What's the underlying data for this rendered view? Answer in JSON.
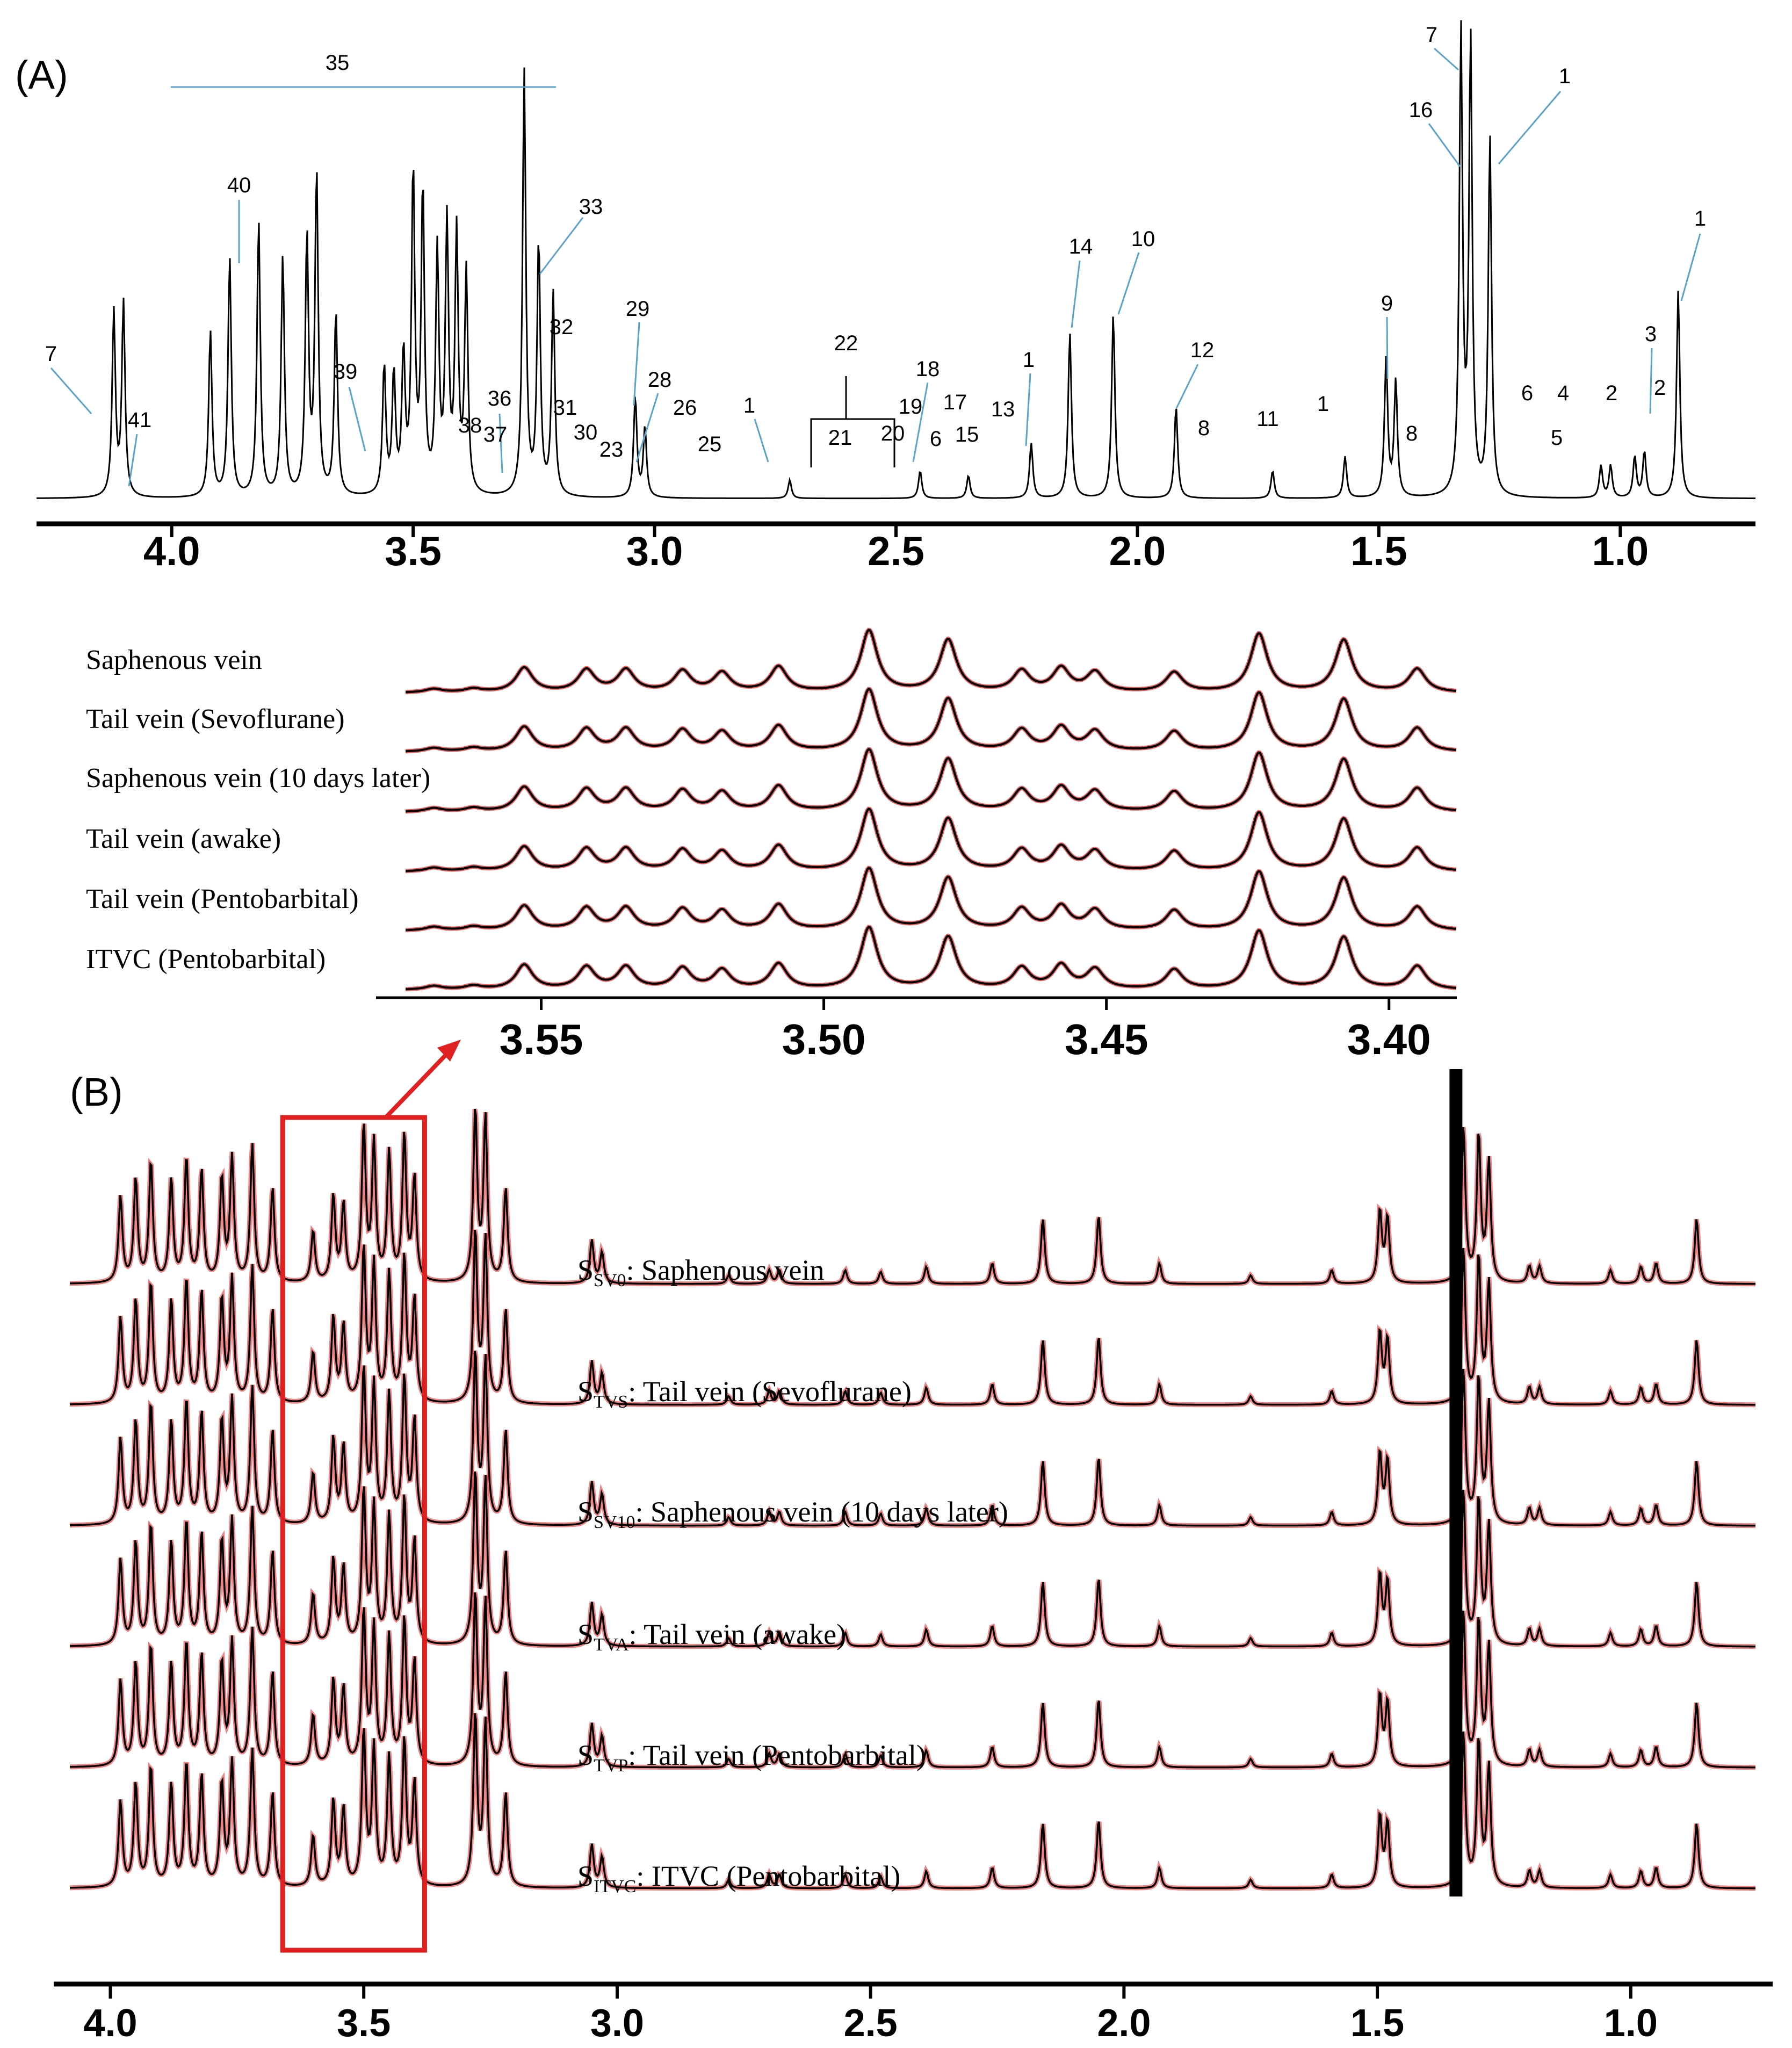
{
  "chart_data": [
    {
      "type": "line",
      "panel": "(A)",
      "xlabel": "",
      "ylabel": "",
      "x_reversed": true,
      "xlim": [
        4.28,
        0.72
      ],
      "x_ticks": [
        4.0,
        3.5,
        3.0,
        2.5,
        2.0,
        1.5,
        1.0
      ],
      "x_tick_labels": [
        "4.0",
        "3.5",
        "3.0",
        "2.5",
        "2.0",
        "1.5",
        "1.0"
      ],
      "peaks": [
        {
          "ppm": 4.12,
          "h": 0.4
        },
        {
          "ppm": 4.1,
          "h": 0.42
        },
        {
          "ppm": 3.92,
          "h": 0.36
        },
        {
          "ppm": 3.88,
          "h": 0.52
        },
        {
          "ppm": 3.82,
          "h": 0.6
        },
        {
          "ppm": 3.77,
          "h": 0.52
        },
        {
          "ppm": 3.72,
          "h": 0.56
        },
        {
          "ppm": 3.7,
          "h": 0.7
        },
        {
          "ppm": 3.66,
          "h": 0.4
        },
        {
          "ppm": 3.56,
          "h": 0.28
        },
        {
          "ppm": 3.54,
          "h": 0.26
        },
        {
          "ppm": 3.52,
          "h": 0.3
        },
        {
          "ppm": 3.5,
          "h": 0.7
        },
        {
          "ppm": 3.48,
          "h": 0.66
        },
        {
          "ppm": 3.45,
          "h": 0.52
        },
        {
          "ppm": 3.43,
          "h": 0.58
        },
        {
          "ppm": 3.41,
          "h": 0.56
        },
        {
          "ppm": 3.39,
          "h": 0.48
        },
        {
          "ppm": 3.27,
          "h": 0.92
        },
        {
          "ppm": 3.24,
          "h": 0.55
        },
        {
          "ppm": 3.21,
          "h": 0.44
        },
        {
          "ppm": 3.04,
          "h": 0.22
        },
        {
          "ppm": 3.02,
          "h": 0.15
        },
        {
          "ppm": 2.72,
          "h": 0.04
        },
        {
          "ppm": 2.45,
          "h": 0.06
        },
        {
          "ppm": 2.35,
          "h": 0.05
        },
        {
          "ppm": 2.22,
          "h": 0.12
        },
        {
          "ppm": 2.14,
          "h": 0.36
        },
        {
          "ppm": 2.05,
          "h": 0.4
        },
        {
          "ppm": 1.92,
          "h": 0.2
        },
        {
          "ppm": 1.72,
          "h": 0.06
        },
        {
          "ppm": 1.57,
          "h": 0.09
        },
        {
          "ppm": 1.485,
          "h": 0.3
        },
        {
          "ppm": 1.465,
          "h": 0.25
        },
        {
          "ppm": 1.33,
          "h": 1.0
        },
        {
          "ppm": 1.31,
          "h": 0.98
        },
        {
          "ppm": 1.27,
          "h": 0.78
        },
        {
          "ppm": 1.04,
          "h": 0.07
        },
        {
          "ppm": 1.02,
          "h": 0.07
        },
        {
          "ppm": 0.97,
          "h": 0.09
        },
        {
          "ppm": 0.95,
          "h": 0.1
        },
        {
          "ppm": 0.88,
          "h": 0.45
        }
      ],
      "annotations": [
        "35",
        "40",
        "33",
        "7",
        "41",
        "39",
        "36",
        "38",
        "37",
        "32",
        "31",
        "30",
        "23",
        "29",
        "28",
        "26",
        "25",
        "1",
        "22",
        "21",
        "20",
        "19",
        "18",
        "6",
        "17",
        "15",
        "13",
        "14",
        "10",
        "12",
        "8",
        "11",
        "9",
        "16",
        "5",
        "4",
        "3",
        "2"
      ]
    },
    {
      "type": "line",
      "panel": "inset (expansion of boxed region)",
      "xlabel": "",
      "ylabel": "",
      "x_reversed": true,
      "xlim": [
        3.574,
        3.388
      ],
      "x_ticks": [
        3.55,
        3.5,
        3.45,
        3.4
      ],
      "x_tick_labels": [
        "3.55",
        "3.50",
        "3.45",
        "3.40"
      ],
      "series": [
        {
          "name": "Saphenous vein"
        },
        {
          "name": "Tail vein (Sevoflurane)"
        },
        {
          "name": "Saphenous vein (10 days later)"
        },
        {
          "name": "Tail vein (awake)"
        },
        {
          "name": "Tail vein (Pentobarbital)"
        },
        {
          "name": "ITVC (Pentobarbital)"
        }
      ],
      "peaks": [
        {
          "ppm": 3.569,
          "h": 0.06
        },
        {
          "ppm": 3.562,
          "h": 0.06
        },
        {
          "ppm": 3.553,
          "h": 0.4
        },
        {
          "ppm": 3.542,
          "h": 0.36
        },
        {
          "ppm": 3.535,
          "h": 0.36
        },
        {
          "ppm": 3.525,
          "h": 0.34
        },
        {
          "ppm": 3.518,
          "h": 0.31
        },
        {
          "ppm": 3.508,
          "h": 0.41
        },
        {
          "ppm": 3.492,
          "h": 1.0
        },
        {
          "ppm": 3.478,
          "h": 0.85
        },
        {
          "ppm": 3.465,
          "h": 0.34
        },
        {
          "ppm": 3.458,
          "h": 0.38
        },
        {
          "ppm": 3.452,
          "h": 0.32
        },
        {
          "ppm": 3.438,
          "h": 0.32
        },
        {
          "ppm": 3.423,
          "h": 0.95
        },
        {
          "ppm": 3.408,
          "h": 0.85
        },
        {
          "ppm": 3.395,
          "h": 0.38
        }
      ]
    },
    {
      "type": "line",
      "panel": "(B)",
      "xlabel": "",
      "ylabel": "",
      "x_reversed": true,
      "xlim": [
        4.08,
        0.72
      ],
      "x_ticks": [
        4.0,
        3.5,
        3.0,
        2.5,
        2.0,
        1.5,
        1.0
      ],
      "x_tick_labels": [
        "4.0",
        "3.5",
        "3.0",
        "2.5",
        "2.0",
        "1.5",
        "1.0"
      ],
      "highlight_box_ppm": [
        3.66,
        3.38
      ],
      "series": [
        {
          "name": "S_SV0",
          "sub": "SV0",
          "label": ": Saphenous vein"
        },
        {
          "name": "S_TVS",
          "sub": "TVS",
          "label": ": Tail vein (Sevoflurane)"
        },
        {
          "name": "S_SV10",
          "sub": "SV10",
          "label": ": Saphenous vein (10 days later)"
        },
        {
          "name": "S_TVA",
          "sub": "TVA",
          "label": ": Tail vein (awake)"
        },
        {
          "name": "S_TVP",
          "sub": "TVP",
          "label": ": Tail vein (Pentobarbital)"
        },
        {
          "name": "S_ITVC",
          "sub": "ITVC",
          "label": ": ITVC (Pentobarbital)"
        }
      ]
    }
  ],
  "colors": {
    "trace": "#000000",
    "variance": "#e02020",
    "highlight_box": "#e02020",
    "peak_label_line": "#5ba3c9"
  },
  "panel_labels": {
    "a": "(A)",
    "b": "(B)"
  },
  "s_prefix": "S"
}
